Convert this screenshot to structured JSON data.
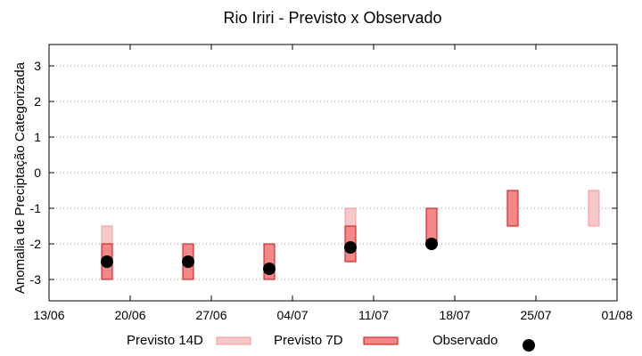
{
  "chart_data": {
    "type": "range-bar-with-points",
    "title": "Rio Iriri - Previsto x Observado",
    "xlabel": "",
    "ylabel": "Anomalia de Preciptação Categorizada",
    "ylim": [
      -3.6,
      3.6
    ],
    "xlim": [
      "2023-06-13",
      "2023-08-01"
    ],
    "y_ticks": [
      -3,
      -2,
      -1,
      0,
      1,
      2,
      3
    ],
    "x_ticks": [
      "13/06",
      "20/06",
      "27/06",
      "04/07",
      "11/07",
      "18/07",
      "25/07",
      "01/08"
    ],
    "x_tick_dates": [
      "2023-06-13",
      "2023-06-20",
      "2023-06-27",
      "2023-07-04",
      "2023-07-11",
      "2023-07-18",
      "2023-07-25",
      "2023-08-01"
    ],
    "grid": true,
    "legend_position": "bottom",
    "series": [
      {
        "name": "Previsto 14D",
        "kind": "range",
        "color_fill": "#f8c8c8",
        "color_edge": "#f09a9a",
        "points": [
          {
            "x": "2023-06-18",
            "low": -3.0,
            "high": -1.5
          },
          {
            "x": "2023-07-09",
            "low": -2.5,
            "high": -1.0
          },
          {
            "x": "2023-07-30",
            "low": -1.5,
            "high": -0.5
          }
        ]
      },
      {
        "name": "Previsto 7D",
        "kind": "range",
        "color_fill": "#f48888",
        "color_edge": "#cc1111",
        "points": [
          {
            "x": "2023-06-18",
            "low": -3.0,
            "high": -2.0
          },
          {
            "x": "2023-06-25",
            "low": -3.0,
            "high": -2.0
          },
          {
            "x": "2023-07-02",
            "low": -3.0,
            "high": -2.0
          },
          {
            "x": "2023-07-09",
            "low": -2.5,
            "high": -1.5
          },
          {
            "x": "2023-07-16",
            "low": -2.0,
            "high": -1.0
          },
          {
            "x": "2023-07-23",
            "low": -1.5,
            "high": -0.5
          }
        ]
      },
      {
        "name": "Observado",
        "kind": "point",
        "color": "#000000",
        "points": [
          {
            "x": "2023-06-18",
            "y": -2.5
          },
          {
            "x": "2023-06-25",
            "y": -2.5
          },
          {
            "x": "2023-07-02",
            "y": -2.7
          },
          {
            "x": "2023-07-09",
            "y": -2.1
          },
          {
            "x": "2023-07-16",
            "y": -2.0
          }
        ]
      }
    ]
  }
}
